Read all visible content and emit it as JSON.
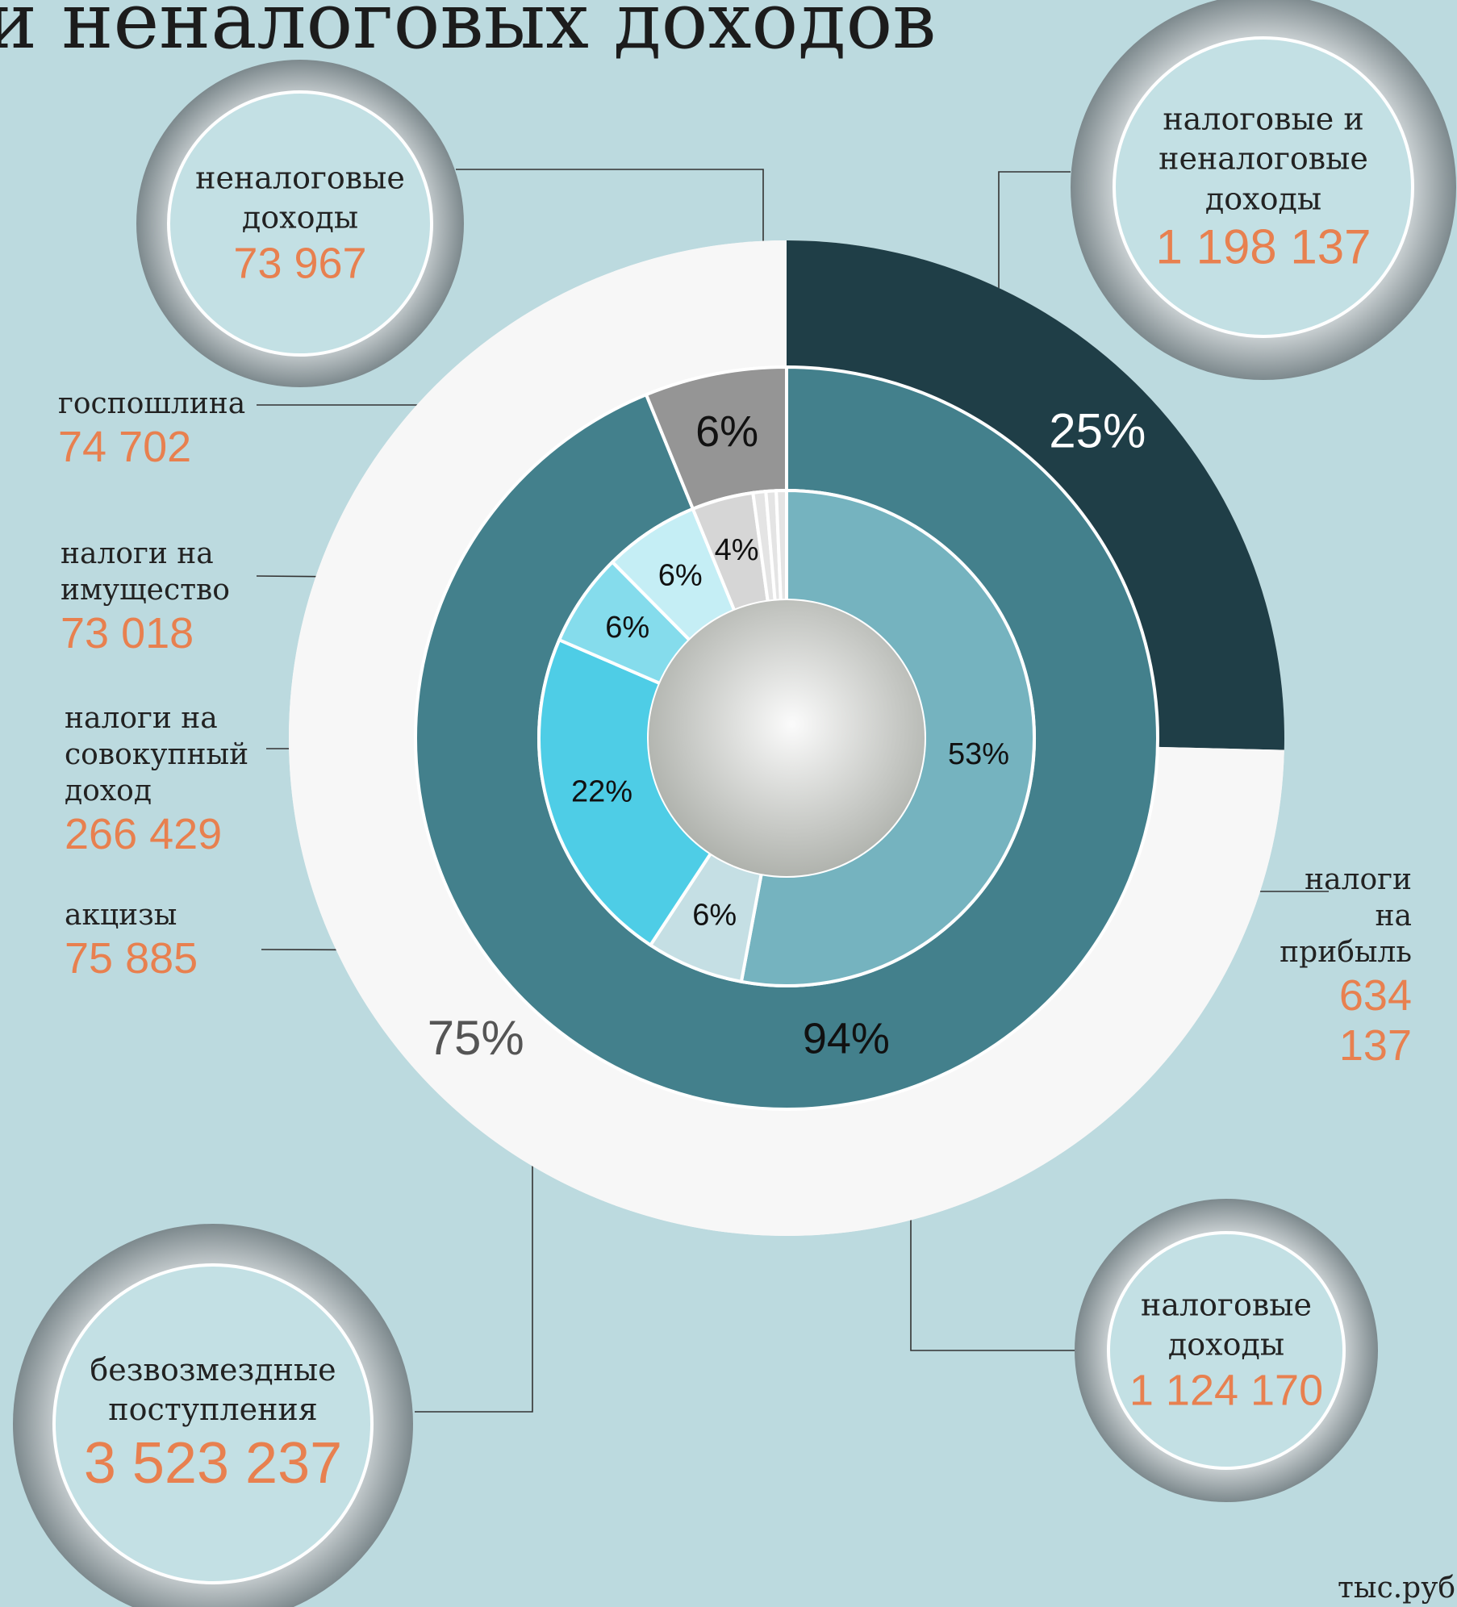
{
  "chart_data": {
    "type": "nested-donut",
    "title": "и неналоговых доходов",
    "note": "тыс.руб",
    "rings": [
      {
        "categories": [
          "налоговые и неналоговые доходы",
          "безвозмездные поступления"
        ],
        "values": [
          1198137,
          3523237
        ],
        "value_labels": [
          "1 198 137",
          "3 523 237"
        ],
        "percents": [
          25,
          75
        ],
        "percent_labels": [
          "25%",
          "75%"
        ],
        "colors": [
          "#1f3e47",
          "#f7f7f7"
        ],
        "label_colors": [
          "#ffffff",
          "#555555"
        ]
      },
      {
        "categories": [
          "налоговые доходы",
          "неналоговые доходы"
        ],
        "values": [
          1124170,
          73967
        ],
        "value_labels": [
          "1 124 170",
          "73 967"
        ],
        "percents": [
          94,
          6
        ],
        "percent_labels": [
          "94%",
          "6%"
        ],
        "colors": [
          "#43808c",
          "#959595"
        ],
        "label_colors": [
          "#111111",
          "#111111"
        ]
      },
      {
        "categories": [
          "налоги на прибыль",
          "акцизы",
          "налоги на совокупный доход",
          "налоги на имущество",
          "госпошлина",
          null,
          null,
          null,
          null
        ],
        "values": [
          634137,
          75885,
          266429,
          73018,
          74702,
          48000,
          10000,
          8000,
          8000
        ],
        "value_labels": [
          "634 137",
          "75 885",
          "266 429",
          "73 018",
          "74 702",
          null,
          null,
          null,
          null
        ],
        "percents": [
          53,
          6,
          22,
          6,
          6,
          4,
          null,
          null,
          null
        ],
        "percent_labels": [
          "53%",
          "6%",
          "22%",
          "6%",
          "6%",
          "4%",
          null,
          null,
          null
        ],
        "colors": [
          "#75b3bf",
          "#c5dfe4",
          "#4ecde6",
          "#85dcec",
          "#c5eef5",
          "#d6d6d6",
          "#e4e4e4",
          "#e4e4e4",
          "#e4e4e4"
        ],
        "label_colors": [
          "#111111",
          "#111111",
          "#111111",
          "#111111",
          "#111111",
          "#111111",
          "#111111",
          "#111111",
          "#111111"
        ]
      }
    ]
  }
}
